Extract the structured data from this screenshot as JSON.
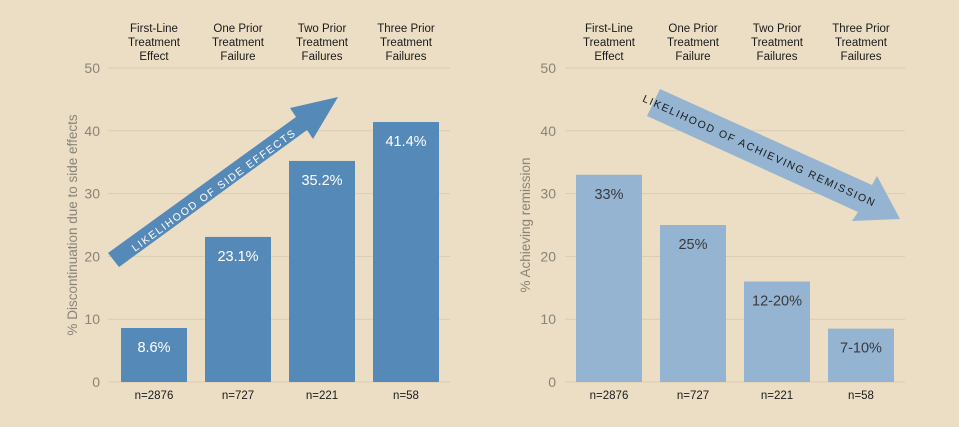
{
  "chart_data": [
    {
      "type": "bar",
      "ylabel": "% Discontinuation due to side effects",
      "ylim": [
        0,
        50
      ],
      "yticks": [
        0,
        10,
        20,
        30,
        40,
        50
      ],
      "grid": true,
      "color": "#5589b8",
      "categories": [
        "First-Line\nTreatment\nEffect",
        "One Prior\nTreatment\nFailure",
        "Two Prior\nTreatment\nFailures",
        "Three Prior\nTreatment\nFailures"
      ],
      "values": [
        8.6,
        23.1,
        35.2,
        41.4
      ],
      "data_labels": [
        "8.6%",
        "23.1%",
        "35.2%",
        "41.4%"
      ],
      "sample_sizes": [
        "n=2876",
        "n=727",
        "n=221",
        "n=58"
      ],
      "annotation": "LIKELIHOOD OF SIDE EFFECTS"
    },
    {
      "type": "bar",
      "ylabel": "% Achieving remission",
      "ylim": [
        0,
        50
      ],
      "yticks": [
        0,
        10,
        20,
        30,
        40,
        50
      ],
      "grid": true,
      "color": "#94b4d2",
      "categories": [
        "First-Line\nTreatment\nEffect",
        "One Prior\nTreatment\nFailure",
        "Two Prior\nTreatment\nFailures",
        "Three Prior\nTreatment\nFailures"
      ],
      "values": [
        33,
        25,
        16,
        8.5
      ],
      "data_labels": [
        "33%",
        "25%",
        "12-20%",
        "7-10%"
      ],
      "sample_sizes": [
        "n=2876",
        "n=727",
        "n=221",
        "n=58"
      ],
      "annotation": "LIKELIHOOD OF ACHIEVING REMISSION"
    }
  ]
}
